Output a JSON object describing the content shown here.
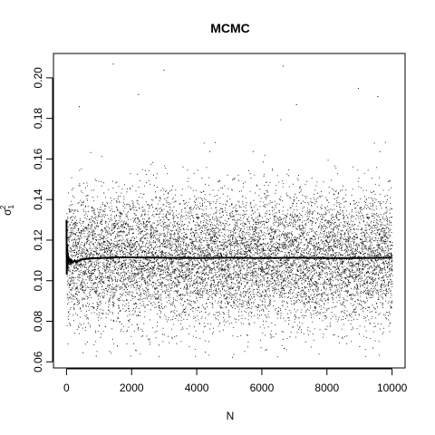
{
  "chart_data": {
    "type": "scatter",
    "title": "MCMC",
    "xlabel": "N",
    "ylabel": "σ",
    "ylabel_subscript": "1",
    "ylabel_superscript": "2",
    "xlim": [
      -400,
      10400
    ],
    "ylim": [
      0.057,
      0.212
    ],
    "x_ticks": [
      0,
      2000,
      4000,
      6000,
      8000,
      10000
    ],
    "y_ticks": [
      0.06,
      0.08,
      0.1,
      0.12,
      0.14,
      0.16,
      0.18,
      0.2
    ],
    "x_tick_labels": [
      "0",
      "2000",
      "4000",
      "6000",
      "8000",
      "10000"
    ],
    "y_tick_labels": [
      "0.06",
      "0.08",
      "0.10",
      "0.12",
      "0.14",
      "0.16",
      "0.18",
      "0.20"
    ],
    "grid": false,
    "legend": "none",
    "samples": {
      "n": 10000,
      "center": 0.111,
      "spread": 0.016,
      "min": 0.062,
      "max": 0.208,
      "outliers": [
        {
          "x": 1420,
          "y": 0.207
        },
        {
          "x": 2980,
          "y": 0.204
        },
        {
          "x": 6640,
          "y": 0.206
        },
        {
          "x": 2200,
          "y": 0.192
        },
        {
          "x": 8950,
          "y": 0.195
        },
        {
          "x": 9550,
          "y": 0.191
        },
        {
          "x": 380,
          "y": 0.186
        },
        {
          "x": 7050,
          "y": 0.187
        },
        {
          "x": 4250,
          "y": 0.065
        },
        {
          "x": 900,
          "y": 0.063
        },
        {
          "x": 6100,
          "y": 0.066
        },
        {
          "x": 1550,
          "y": 0.068
        },
        {
          "x": 9400,
          "y": 0.067
        }
      ]
    },
    "running_mean": {
      "x": [
        0,
        10,
        20,
        30,
        40,
        50,
        60,
        80,
        100,
        130,
        160,
        200,
        250,
        300,
        400,
        500,
        700,
        1000,
        1500,
        2000,
        3000,
        4000,
        5000,
        6000,
        7000,
        8000,
        9000,
        10000
      ],
      "y": [
        0.13,
        0.103,
        0.118,
        0.106,
        0.114,
        0.108,
        0.112,
        0.109,
        0.111,
        0.108,
        0.11,
        0.109,
        0.11,
        0.109,
        0.11,
        0.1105,
        0.111,
        0.1112,
        0.1115,
        0.1115,
        0.1113,
        0.1112,
        0.1113,
        0.1112,
        0.1113,
        0.1112,
        0.1112,
        0.1113
      ]
    },
    "colors": {
      "points": "#000000",
      "line": "#000000",
      "frame": "#000000"
    }
  }
}
